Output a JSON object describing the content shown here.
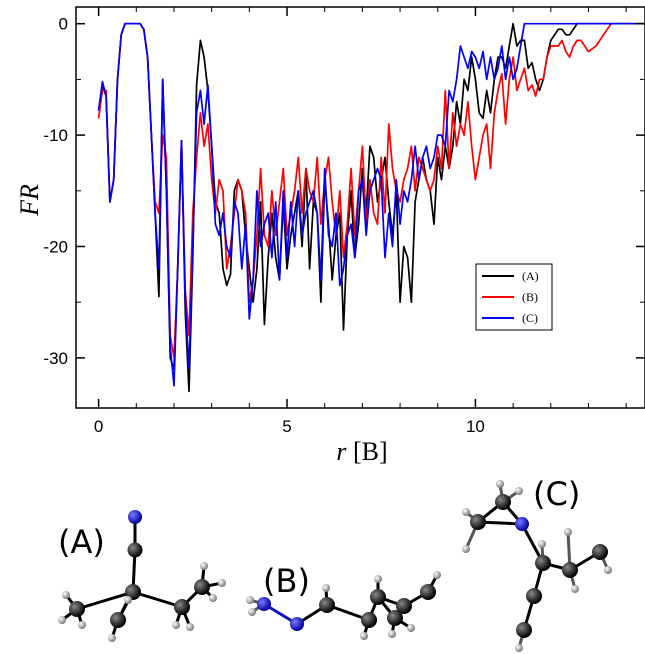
{
  "chart_data": {
    "type": "line",
    "xlabel_var": "r",
    "xlabel_unit": "[B]",
    "ylabel": "FR",
    "xlim": [
      -0.6,
      14.5
    ],
    "ylim": [
      -34.5,
      1.5
    ],
    "x_ticks": [
      0,
      5,
      10
    ],
    "y_ticks": [
      0,
      -10,
      -20,
      -30
    ],
    "x_tick_labels": [
      "0",
      "5",
      "10"
    ],
    "y_tick_labels": [
      "0",
      "-10",
      "-20",
      "-30"
    ],
    "grid": false,
    "legend_position": "inside lower-right",
    "series": [
      {
        "name": "(A)",
        "color": "#000000",
        "x": [
          0,
          0.1,
          0.2,
          0.3,
          0.4,
          0.5,
          0.6,
          0.7,
          0.8,
          0.9,
          1.0,
          1.1,
          1.2,
          1.3,
          1.4,
          1.5,
          1.6,
          1.7,
          1.8,
          1.9,
          2.0,
          2.1,
          2.2,
          2.3,
          2.4,
          2.5,
          2.6,
          2.7,
          2.8,
          2.9,
          3.0,
          3.1,
          3.2,
          3.3,
          3.4,
          3.5,
          3.6,
          3.7,
          3.8,
          3.9,
          4.0,
          4.1,
          4.2,
          4.3,
          4.4,
          4.5,
          4.6,
          4.7,
          4.8,
          4.9,
          5.0,
          5.1,
          5.2,
          5.3,
          5.4,
          5.5,
          5.6,
          5.7,
          5.8,
          5.9,
          6.0,
          6.1,
          6.2,
          6.3,
          6.4,
          6.5,
          6.6,
          6.7,
          6.8,
          6.9,
          7.0,
          7.1,
          7.2,
          7.3,
          7.4,
          7.5,
          7.6,
          7.7,
          7.8,
          7.9,
          8.0,
          8.1,
          8.2,
          8.3,
          8.4,
          8.5,
          8.6,
          8.7,
          8.8,
          8.9,
          9.0,
          9.1,
          9.2,
          9.3,
          9.4,
          9.5,
          9.6,
          9.7,
          9.8,
          9.9,
          10.0,
          10.1,
          10.2,
          10.3,
          10.4,
          10.5,
          10.6,
          10.7,
          10.8,
          10.9,
          11.0,
          11.1,
          11.2,
          11.3,
          11.4,
          11.5,
          11.6,
          11.7,
          11.8,
          11.9,
          12.0,
          12.1,
          12.2,
          12.3,
          12.4,
          12.5,
          12.6,
          12.7,
          12.8,
          12.9,
          13.0,
          13.5,
          14.0,
          14.5
        ],
        "y": [
          -7.8,
          -5.5,
          -6.5,
          -16,
          -14,
          -5,
          -1,
          0,
          0,
          0,
          0,
          0,
          -0.5,
          -3,
          -10,
          -17,
          -24.5,
          -5,
          -15,
          -30,
          -31,
          -22,
          -10.5,
          -26,
          -33,
          -21,
          -5.5,
          -1.5,
          -3,
          -6,
          -11,
          -16,
          -17,
          -22,
          -23.5,
          -22.5,
          -15,
          -14,
          -15,
          -19,
          -22,
          -25,
          -22,
          -16,
          -27,
          -21,
          -17,
          -21,
          -23,
          -16,
          -22,
          -19,
          -17,
          -15,
          -20,
          -13,
          -22,
          -16,
          -17,
          -25,
          -14,
          -18,
          -23,
          -19,
          -17,
          -27.5,
          -19,
          -15,
          -21,
          -18,
          -13,
          -17,
          -11,
          -12,
          -16,
          -14,
          -12,
          -16,
          -19,
          -15,
          -25,
          -20,
          -21,
          -25,
          -16,
          -14,
          -12,
          -14,
          -15,
          -18,
          -12,
          -14,
          -11,
          -13,
          -11,
          -7,
          -9,
          -5,
          -6,
          -3,
          -5,
          -8,
          -8.5,
          -6,
          -8,
          -5,
          -3,
          -3,
          -4,
          -2,
          0,
          -2,
          -1.5,
          -1.5,
          -4,
          -3.5,
          -5,
          -6,
          -5,
          -3,
          -1.5,
          -1,
          -0.5,
          -0.5,
          -1,
          -1,
          -0.5,
          0,
          0,
          0,
          0,
          0,
          0,
          0
        ]
      },
      {
        "name": "(B)",
        "color": "#ff0000",
        "x": [
          0,
          0.1,
          0.2,
          0.3,
          0.4,
          0.5,
          0.6,
          0.7,
          0.8,
          0.9,
          1.0,
          1.1,
          1.2,
          1.3,
          1.4,
          1.5,
          1.6,
          1.7,
          1.8,
          1.9,
          2.0,
          2.1,
          2.2,
          2.3,
          2.4,
          2.5,
          2.6,
          2.7,
          2.8,
          2.9,
          3.0,
          3.1,
          3.2,
          3.3,
          3.4,
          3.5,
          3.6,
          3.7,
          3.8,
          3.9,
          4.0,
          4.1,
          4.2,
          4.3,
          4.4,
          4.5,
          4.6,
          4.7,
          4.8,
          4.9,
          5.0,
          5.1,
          5.2,
          5.3,
          5.4,
          5.5,
          5.6,
          5.7,
          5.8,
          5.9,
          6.0,
          6.1,
          6.2,
          6.3,
          6.4,
          6.5,
          6.6,
          6.7,
          6.8,
          6.9,
          7.0,
          7.1,
          7.2,
          7.3,
          7.4,
          7.5,
          7.6,
          7.7,
          7.8,
          7.9,
          8.0,
          8.1,
          8.2,
          8.3,
          8.4,
          8.5,
          8.6,
          8.7,
          8.8,
          8.9,
          9.0,
          9.1,
          9.2,
          9.3,
          9.4,
          9.5,
          9.6,
          9.7,
          9.8,
          9.9,
          10.0,
          10.1,
          10.2,
          10.3,
          10.4,
          10.5,
          10.6,
          10.7,
          10.8,
          10.9,
          11.0,
          11.1,
          11.2,
          11.3,
          11.4,
          11.5,
          11.6,
          11.7,
          11.8,
          11.9,
          12.0,
          12.1,
          12.2,
          12.3,
          12.4,
          12.5,
          12.6,
          12.7,
          12.8,
          12.9,
          13.0,
          13.2,
          13.4,
          13.6,
          14.0,
          14.5
        ],
        "y": [
          -8.5,
          -6,
          -6,
          -16,
          -14,
          -5,
          -1,
          0,
          0,
          0,
          0,
          0,
          -0.5,
          -3,
          -10,
          -16,
          -17,
          -10,
          -12,
          -28,
          -30,
          -22,
          -10.5,
          -24,
          -28,
          -17,
          -12,
          -8,
          -11,
          -9,
          -14,
          -17,
          -14,
          -15,
          -22,
          -20,
          -17,
          -14,
          -15,
          -17,
          -25,
          -23,
          -19,
          -13,
          -19,
          -20,
          -15,
          -19,
          -16,
          -13,
          -19,
          -17,
          -15,
          -12,
          -17,
          -13,
          -15,
          -16,
          -12,
          -18,
          -14,
          -12,
          -16,
          -19,
          -15,
          -21,
          -18,
          -13,
          -19,
          -15,
          -11,
          -18,
          -14,
          -17,
          -18,
          -12,
          -17,
          -9,
          -13,
          -15,
          -16,
          -14,
          -13,
          -11,
          -15,
          -12,
          -13,
          -14,
          -15,
          -14,
          -11,
          -13,
          -6,
          -13,
          -8,
          -11,
          -9,
          -10,
          -7,
          -11,
          -14,
          -12,
          -10,
          -9,
          -13,
          -8,
          -6,
          -4.5,
          -9,
          -5,
          -3,
          -6,
          -5,
          -4,
          -6,
          -5.5,
          -6.5,
          -5,
          -5,
          -3,
          -2,
          -2,
          -2,
          -1.5,
          -2.5,
          -3,
          -2,
          -1.5,
          -1.5,
          -2,
          -2.5,
          -2,
          -1,
          0,
          0,
          0
        ]
      },
      {
        "name": "(C)",
        "color": "#0000ff",
        "x": [
          0,
          0.1,
          0.2,
          0.3,
          0.4,
          0.5,
          0.6,
          0.7,
          0.8,
          0.9,
          1.0,
          1.1,
          1.2,
          1.3,
          1.4,
          1.5,
          1.6,
          1.7,
          1.8,
          1.9,
          2.0,
          2.1,
          2.2,
          2.3,
          2.4,
          2.5,
          2.6,
          2.7,
          2.8,
          2.9,
          3.0,
          3.1,
          3.2,
          3.3,
          3.4,
          3.5,
          3.6,
          3.7,
          3.8,
          3.9,
          4.0,
          4.1,
          4.2,
          4.3,
          4.4,
          4.5,
          4.6,
          4.7,
          4.8,
          4.9,
          5.0,
          5.1,
          5.2,
          5.3,
          5.4,
          5.5,
          5.6,
          5.7,
          5.8,
          5.9,
          6.0,
          6.1,
          6.2,
          6.3,
          6.4,
          6.5,
          6.6,
          6.7,
          6.8,
          6.9,
          7.0,
          7.1,
          7.2,
          7.3,
          7.4,
          7.5,
          7.6,
          7.7,
          7.8,
          7.9,
          8.0,
          8.1,
          8.2,
          8.3,
          8.4,
          8.5,
          8.6,
          8.7,
          8.8,
          8.9,
          9.0,
          9.1,
          9.2,
          9.3,
          9.4,
          9.5,
          9.6,
          9.7,
          9.8,
          9.9,
          10.0,
          10.1,
          10.2,
          10.3,
          10.4,
          10.5,
          10.6,
          10.7,
          10.8,
          10.9,
          11.0,
          11.1,
          11.2,
          11.3,
          11.4,
          11.5,
          12.0,
          12.5,
          13.0,
          14.0,
          14.5
        ],
        "y": [
          -7.8,
          -5.2,
          -6.5,
          -16,
          -14,
          -5,
          -1,
          0,
          0,
          0,
          0,
          0,
          -0.5,
          -3,
          -10,
          -17,
          -22,
          -5,
          -15,
          -29,
          -32.5,
          -22,
          -10.5,
          -25,
          -31,
          -20,
          -8,
          -6,
          -9,
          -5.5,
          -11,
          -18,
          -19,
          -17,
          -20,
          -21,
          -16,
          -17,
          -22,
          -18,
          -26.5,
          -23,
          -15,
          -20,
          -18,
          -17,
          -21,
          -16,
          -23,
          -15,
          -21,
          -16,
          -20,
          -15,
          -19,
          -17,
          -16,
          -15,
          -17,
          -23,
          -13,
          -19,
          -20,
          -17,
          -23.5,
          -22,
          -19,
          -18,
          -21,
          -15,
          -14,
          -19,
          -15,
          -14,
          -13,
          -14,
          -21,
          -17,
          -20,
          -14,
          -18,
          -15,
          -16,
          -14,
          -11,
          -14,
          -12,
          -11,
          -13,
          -12,
          -10,
          -10,
          -11,
          -6,
          -7,
          -5,
          -2,
          -3,
          -4,
          -2.5,
          -3,
          -4,
          -2.5,
          -5,
          -3,
          -5,
          -4,
          -2,
          -5,
          -3,
          -5,
          -4,
          -2,
          0,
          0,
          0,
          0,
          0,
          0,
          0,
          0
        ]
      }
    ]
  },
  "molecules": {
    "labels": [
      "(A)",
      "(B)",
      "(C)"
    ]
  }
}
